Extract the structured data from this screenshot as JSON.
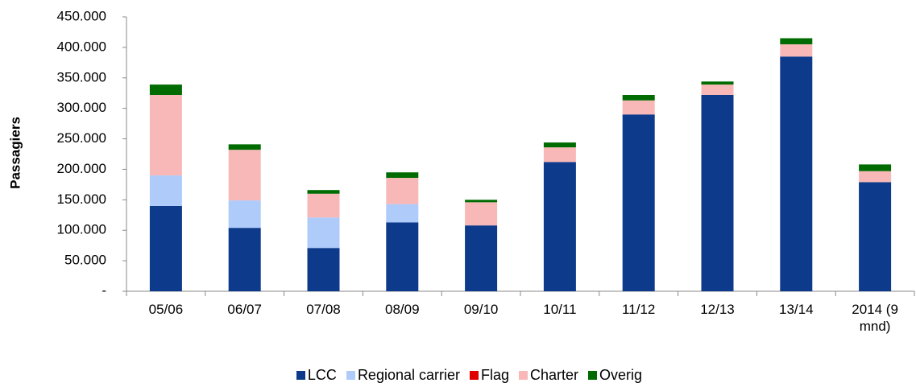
{
  "chart_data": {
    "type": "stacked_bar",
    "y_label": "Passagiers",
    "categories": [
      "05/06",
      "06/07",
      "07/08",
      "08/09",
      "09/10",
      "10/11",
      "11/12",
      "12/13",
      "13/14",
      "2014 (9 mnd)"
    ],
    "series": [
      {
        "name": "LCC",
        "color": "#0d3a8a",
        "values": [
          140000,
          104000,
          71000,
          113000,
          108000,
          212000,
          290000,
          322000,
          385000,
          179000
        ]
      },
      {
        "name": "Regional carrier",
        "color": "#aecbfa",
        "values": [
          50000,
          45000,
          50000,
          30000,
          0,
          0,
          0,
          0,
          0,
          0
        ]
      },
      {
        "name": "Flag",
        "color": "#e00000",
        "values": [
          0,
          0,
          0,
          0,
          0,
          0,
          0,
          0,
          0,
          0
        ]
      },
      {
        "name": "Charter",
        "color": "#f9b8b8",
        "values": [
          132000,
          83000,
          39000,
          43000,
          38000,
          24000,
          23000,
          17000,
          20000,
          18000
        ]
      },
      {
        "name": "Overig",
        "color": "#006b00",
        "values": [
          17000,
          9000,
          6000,
          9000,
          4000,
          8000,
          9000,
          5000,
          10000,
          11000
        ]
      }
    ],
    "ylim": [
      0,
      450000
    ],
    "yticks": [
      {
        "value": 0,
        "label": "-"
      },
      {
        "value": 50000,
        "label": "50.000"
      },
      {
        "value": 100000,
        "label": "100.000"
      },
      {
        "value": 150000,
        "label": "150.000"
      },
      {
        "value": 200000,
        "label": "200.000"
      },
      {
        "value": 250000,
        "label": "250.000"
      },
      {
        "value": 300000,
        "label": "300.000"
      },
      {
        "value": 350000,
        "label": "350.000"
      },
      {
        "value": 400000,
        "label": "400.000"
      },
      {
        "value": 450000,
        "label": "450.000"
      }
    ]
  }
}
